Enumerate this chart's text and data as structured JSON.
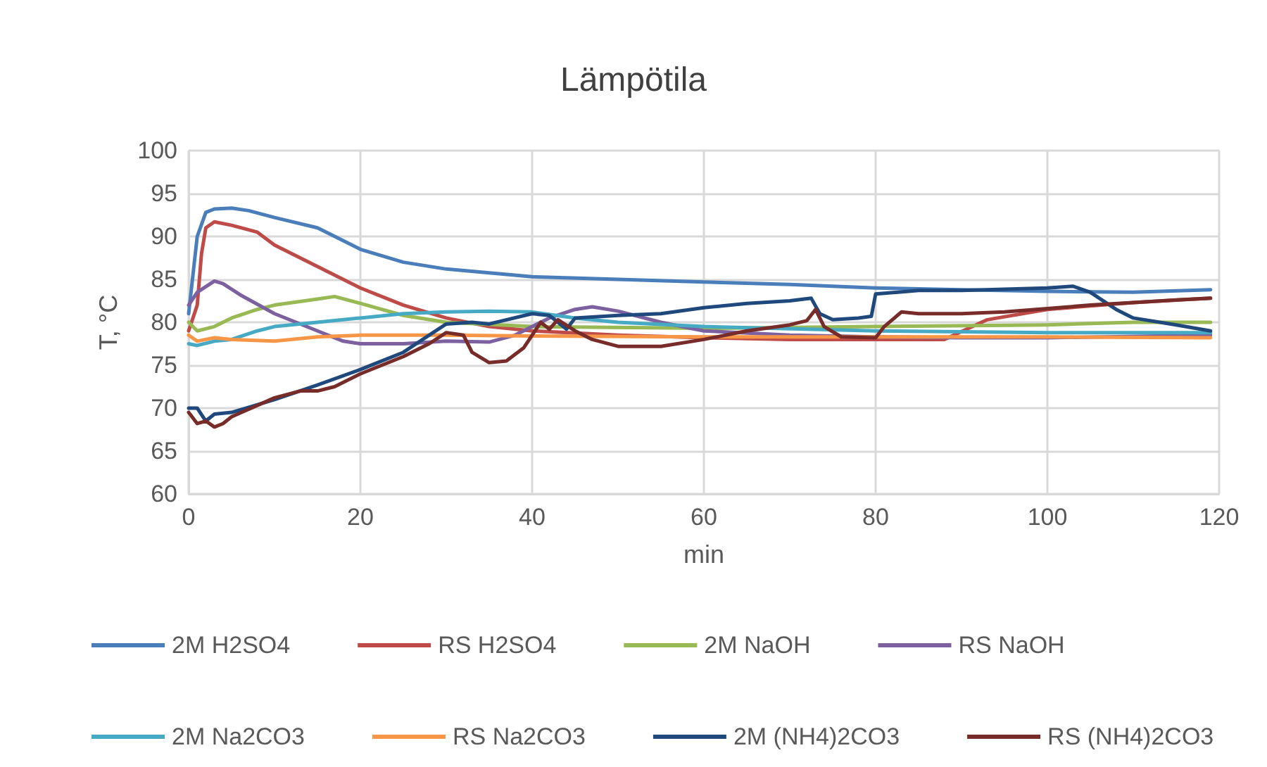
{
  "chart_data": {
    "type": "line",
    "title": "Lämpötila",
    "xlabel": "min",
    "ylabel": "T, °C",
    "xlim": [
      0,
      120
    ],
    "xticks": [
      0,
      20,
      40,
      60,
      80,
      100,
      120
    ],
    "ylim": [
      60,
      100
    ],
    "yticks": [
      60,
      65,
      70,
      75,
      80,
      85,
      90,
      95,
      100
    ],
    "grid": true,
    "legend": "bottom",
    "marker": "none",
    "line_style": "solid",
    "series": [
      {
        "name": "2M H2SO4",
        "color": "#4a7ebb",
        "x": [
          0,
          1,
          2,
          3,
          5,
          7,
          10,
          15,
          18,
          20,
          25,
          30,
          40,
          50,
          60,
          70,
          80,
          90,
          100,
          110,
          119
        ],
        "values": [
          81,
          90,
          92.8,
          93.2,
          93.3,
          93,
          92.2,
          91,
          89.5,
          88.5,
          87,
          86.2,
          85.3,
          85,
          84.7,
          84.4,
          84,
          83.8,
          83.6,
          83.5,
          83.8
        ]
      },
      {
        "name": "RS H2SO4",
        "color": "#be4b48",
        "x": [
          0,
          1,
          1.5,
          2,
          3,
          5,
          8,
          10,
          15,
          20,
          25,
          30,
          35,
          40,
          50,
          60,
          70,
          80,
          88,
          93,
          100,
          110,
          119
        ],
        "values": [
          79,
          82,
          88,
          91,
          91.7,
          91.3,
          90.5,
          89,
          86.5,
          84,
          82,
          80.5,
          79.5,
          79,
          78.5,
          78.2,
          78,
          78,
          78,
          80.3,
          81.5,
          82.3,
          82.8
        ]
      },
      {
        "name": "2M NaOH",
        "color": "#98b954",
        "x": [
          0,
          1,
          3,
          5,
          8,
          10,
          15,
          17,
          20,
          25,
          30,
          40,
          60,
          80,
          100,
          110,
          119
        ],
        "values": [
          80,
          79,
          79.5,
          80.5,
          81.5,
          82,
          82.7,
          83,
          82.2,
          80.8,
          80,
          79.5,
          79.3,
          79.5,
          79.7,
          80,
          80
        ]
      },
      {
        "name": "RS NaOH",
        "color": "#7d60a0",
        "x": [
          0,
          1,
          3,
          4,
          6,
          10,
          15,
          18,
          20,
          25,
          30,
          35,
          38,
          42,
          45,
          47,
          50,
          55,
          60,
          70,
          80,
          90,
          100,
          119
        ],
        "values": [
          82,
          83.5,
          84.8,
          84.5,
          83.2,
          81,
          79,
          77.8,
          77.5,
          77.5,
          77.8,
          77.7,
          78.5,
          80.5,
          81.5,
          81.8,
          81.3,
          80,
          79,
          78.5,
          78.3,
          78.2,
          78.2,
          78.5
        ]
      },
      {
        "name": "2M Na2CO3",
        "color": "#46aac5",
        "x": [
          0,
          1,
          3,
          5,
          8,
          10,
          15,
          20,
          25,
          30,
          35,
          40,
          45,
          50,
          60,
          80,
          100,
          119
        ],
        "values": [
          77.5,
          77.3,
          77.8,
          78,
          79,
          79.5,
          80,
          80.5,
          81,
          81.2,
          81.3,
          81.2,
          80.5,
          80,
          79.5,
          79,
          78.8,
          78.8
        ]
      },
      {
        "name": "RS Na2CO3",
        "color": "#f79646",
        "x": [
          0,
          1,
          2,
          3,
          5,
          10,
          15,
          20,
          30,
          40,
          60,
          80,
          100,
          119
        ],
        "values": [
          78.5,
          77.8,
          78,
          78.2,
          78,
          77.8,
          78.3,
          78.5,
          78.5,
          78.4,
          78.3,
          78.3,
          78.3,
          78.2
        ]
      },
      {
        "name": "2M (NH4)2CO3",
        "color": "#1f497d",
        "x": [
          0,
          1,
          2,
          3,
          5,
          10,
          15,
          20,
          25,
          28,
          30,
          33,
          35,
          40,
          42,
          44,
          45,
          50,
          55,
          60,
          65,
          70,
          72.5,
          73.5,
          75,
          78,
          79.5,
          80,
          85,
          90,
          100,
          103,
          105,
          108,
          110,
          115,
          119
        ],
        "values": [
          70,
          70,
          68.5,
          69.3,
          69.5,
          71,
          72.7,
          74.5,
          76.5,
          78.5,
          79.8,
          80,
          79.8,
          81,
          80.8,
          79.2,
          80.5,
          80.8,
          81,
          81.7,
          82.2,
          82.5,
          82.8,
          81,
          80.3,
          80.5,
          80.7,
          83.3,
          83.7,
          83.7,
          84,
          84.2,
          83.5,
          81.5,
          80.5,
          79.7,
          79
        ]
      },
      {
        "name": "RS (NH4)2CO3",
        "color": "#772c2a",
        "x": [
          0,
          1,
          2,
          3,
          4,
          5,
          10,
          13,
          15,
          17,
          20,
          25,
          28,
          30,
          32,
          33,
          35,
          37,
          39,
          40,
          41,
          42,
          43,
          45,
          47,
          50,
          55,
          60,
          65,
          70,
          72,
          73,
          74,
          76,
          80,
          81,
          83,
          85,
          90,
          95,
          100,
          105,
          110,
          115,
          119
        ],
        "values": [
          69.5,
          68.2,
          68.5,
          67.8,
          68.2,
          69,
          71.2,
          72,
          72,
          72.5,
          74,
          76,
          77.5,
          78.8,
          78.5,
          76.5,
          75.3,
          75.5,
          77,
          78.5,
          80,
          79.2,
          80.3,
          79,
          78,
          77.2,
          77.2,
          78,
          79,
          79.7,
          80.2,
          81.5,
          79.5,
          78.3,
          78.2,
          79.5,
          81.2,
          81,
          81,
          81.2,
          81.6,
          82,
          82.3,
          82.6,
          82.8
        ]
      }
    ]
  }
}
